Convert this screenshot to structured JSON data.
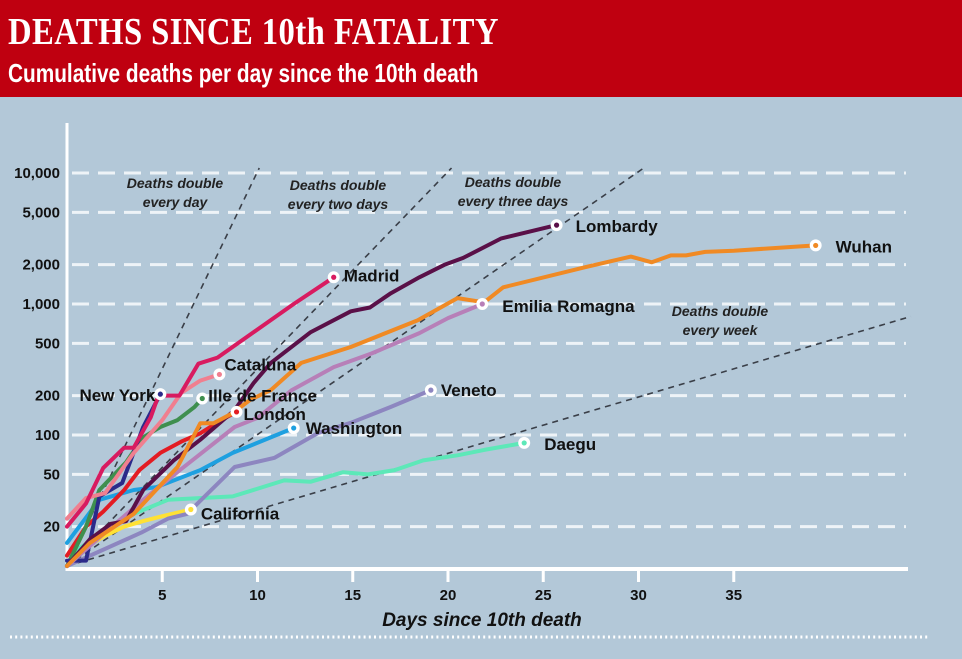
{
  "header": {
    "title": "DEATHS SINCE 10th FATALITY",
    "subtitle": "Cumulative deaths per day since the 10th death"
  },
  "chart_data": {
    "type": "line",
    "title": "DEATHS SINCE 10th FATALITY",
    "subtitle": "Cumulative deaths per day since the 10th death",
    "xlabel": "Days since 10th death",
    "ylabel": "",
    "xlim": [
      0,
      44
    ],
    "ylim": [
      10,
      24000
    ],
    "yscale": "log",
    "x_ticks": [
      5,
      10,
      15,
      20,
      25,
      30,
      35
    ],
    "y_ticks": [
      20,
      50,
      100,
      200,
      500,
      1000,
      2000,
      5000,
      10000
    ],
    "y_tick_labels": [
      "20",
      "50",
      "100",
      "200",
      "500",
      "1,000",
      "2,000",
      "5,000",
      "10,000"
    ],
    "grid": "horizontal dashed white",
    "background": "#b3c8d8",
    "reference_lines": [
      {
        "label_line1": "Deaths double",
        "label_line2": "every day",
        "doubling_days": 1
      },
      {
        "label_line1": "Deaths double",
        "label_line2": "every two days",
        "doubling_days": 2
      },
      {
        "label_line1": "Deaths double",
        "label_line2": "every three days",
        "doubling_days": 3
      },
      {
        "label_line1": "Deaths double",
        "label_line2": "every week",
        "doubling_days": 7
      }
    ],
    "series": [
      {
        "name": "Wuhan",
        "color": "#f08a24",
        "points": [
          [
            0,
            10
          ],
          [
            1.2,
            15
          ],
          [
            3.5,
            25
          ],
          [
            5.8,
            57
          ],
          [
            7,
            123
          ],
          [
            7.7,
            123
          ],
          [
            8.7,
            147
          ],
          [
            9.6,
            185
          ],
          [
            10.7,
            220
          ],
          [
            12.3,
            355
          ],
          [
            14.9,
            470
          ],
          [
            18.4,
            750
          ],
          [
            20.5,
            1110
          ],
          [
            21.9,
            1030
          ],
          [
            22.9,
            1340
          ],
          [
            27.2,
            1910
          ],
          [
            29.6,
            2300
          ],
          [
            30.7,
            2080
          ],
          [
            31.7,
            2350
          ],
          [
            32.5,
            2350
          ],
          [
            33.5,
            2500
          ],
          [
            35,
            2550
          ],
          [
            39.3,
            2800
          ]
        ]
      },
      {
        "name": "Lombardy",
        "color": "#5a1048",
        "points": [
          [
            0,
            10
          ],
          [
            1.2,
            16
          ],
          [
            2.3,
            21
          ],
          [
            3.1,
            22
          ],
          [
            4,
            38
          ],
          [
            5.6,
            64
          ],
          [
            7,
            92
          ],
          [
            8.8,
            155
          ],
          [
            9.8,
            250
          ],
          [
            10.7,
            355
          ],
          [
            12.8,
            610
          ],
          [
            14.9,
            880
          ],
          [
            15.9,
            940
          ],
          [
            17,
            1210
          ],
          [
            18.5,
            1600
          ],
          [
            19.8,
            1990
          ],
          [
            20.8,
            2250
          ],
          [
            22.8,
            3170
          ],
          [
            25.7,
            4000
          ]
        ]
      },
      {
        "name": "Emilia Romagna",
        "color": "#b77fb8",
        "points": [
          [
            0,
            10
          ],
          [
            2,
            18
          ],
          [
            4,
            32
          ],
          [
            6,
            55
          ],
          [
            8.8,
            115
          ],
          [
            10,
            135
          ],
          [
            11.8,
            220
          ],
          [
            14,
            330
          ],
          [
            16,
            420
          ],
          [
            18.5,
            600
          ],
          [
            20,
            780
          ],
          [
            21.8,
            1000
          ]
        ]
      },
      {
        "name": "Madrid",
        "color": "#d81b60",
        "points": [
          [
            0,
            20
          ],
          [
            1,
            30
          ],
          [
            1.9,
            56
          ],
          [
            3,
            80
          ],
          [
            3.5,
            80
          ],
          [
            4.4,
            137
          ],
          [
            4.8,
            200
          ],
          [
            5.9,
            200
          ],
          [
            6.9,
            350
          ],
          [
            7.9,
            390
          ],
          [
            11.9,
            1000
          ],
          [
            14,
            1600
          ]
        ]
      },
      {
        "name": "Cataluna",
        "color": "#f07f8f",
        "points": [
          [
            0,
            23
          ],
          [
            1,
            33
          ],
          [
            2,
            36
          ],
          [
            3.5,
            73
          ],
          [
            5,
            130
          ],
          [
            6,
            210
          ],
          [
            7,
            260
          ],
          [
            8,
            290
          ]
        ]
      },
      {
        "name": "New York",
        "color": "#2b2a8a",
        "points": [
          [
            0,
            11
          ],
          [
            1,
            11
          ],
          [
            1.7,
            34
          ],
          [
            2.9,
            43
          ],
          [
            4,
            115
          ],
          [
            4.9,
            205
          ]
        ]
      },
      {
        "name": "Ille de France",
        "color": "#3f8f4f",
        "points": [
          [
            0,
            10
          ],
          [
            1,
            20
          ],
          [
            1.7,
            38
          ],
          [
            3.1,
            62
          ],
          [
            4,
            96
          ],
          [
            4.9,
            115
          ],
          [
            5.8,
            130
          ],
          [
            6.7,
            164
          ],
          [
            7.1,
            190
          ]
        ]
      },
      {
        "name": "London",
        "color": "#e31c23",
        "points": [
          [
            0,
            12
          ],
          [
            1,
            20
          ],
          [
            1.9,
            26
          ],
          [
            3,
            38
          ],
          [
            3.8,
            54
          ],
          [
            4.9,
            73
          ],
          [
            6,
            89
          ],
          [
            7,
            103
          ],
          [
            8.1,
            130
          ],
          [
            8.9,
            150
          ]
        ]
      },
      {
        "name": "Washington",
        "color": "#1ea0e0",
        "points": [
          [
            0,
            15
          ],
          [
            1.7,
            32
          ],
          [
            3.5,
            38
          ],
          [
            4.7,
            40
          ],
          [
            7,
            54
          ],
          [
            8.7,
            73
          ],
          [
            11.9,
            113
          ]
        ]
      },
      {
        "name": "Veneto",
        "color": "#8d86c0",
        "points": [
          [
            0,
            10
          ],
          [
            3.9,
            18
          ],
          [
            5.3,
            23
          ],
          [
            6.3,
            25
          ],
          [
            8.8,
            57
          ],
          [
            10.9,
            67
          ],
          [
            13.2,
            104
          ],
          [
            14.9,
            124
          ],
          [
            17,
            164
          ],
          [
            19.1,
            220
          ]
        ]
      },
      {
        "name": "Daegu",
        "color": "#5de8b8",
        "points": [
          [
            0,
            12
          ],
          [
            2,
            18
          ],
          [
            3.5,
            25
          ],
          [
            5.3,
            32
          ],
          [
            8.7,
            34
          ],
          [
            11.4,
            45
          ],
          [
            12.8,
            44
          ],
          [
            14.5,
            52
          ],
          [
            15.8,
            50
          ],
          [
            17.2,
            54
          ],
          [
            18.7,
            64
          ],
          [
            20.5,
            70
          ],
          [
            21.9,
            77
          ],
          [
            24,
            87
          ]
        ]
      },
      {
        "name": "California",
        "color": "#ffe135",
        "points": [
          [
            0,
            10
          ],
          [
            1,
            14
          ],
          [
            2,
            17
          ],
          [
            3,
            20
          ],
          [
            4,
            22
          ],
          [
            5,
            24
          ],
          [
            6.5,
            27
          ]
        ]
      }
    ]
  }
}
